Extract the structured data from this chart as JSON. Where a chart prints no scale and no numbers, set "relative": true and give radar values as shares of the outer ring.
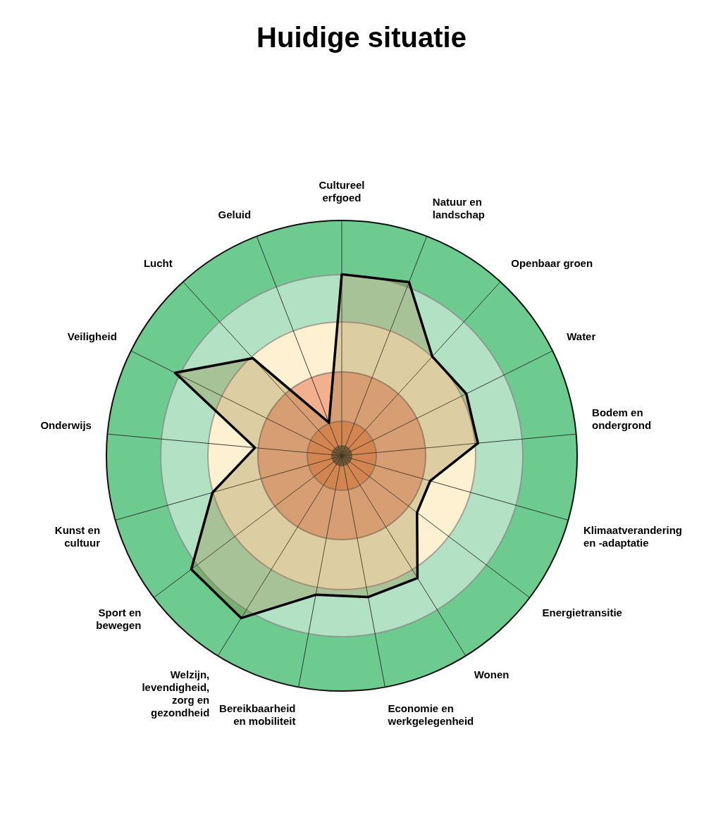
{
  "chart_data": {
    "type": "radar",
    "title": "Huidige situatie",
    "relative": true,
    "legend": false,
    "marker": "none",
    "categories": [
      "Cultureel erfgoed",
      "Natuur en landschap",
      "Openbaar groen",
      "Water",
      "Bodem en ondergrond",
      "Klimaatverandering en -adaptatie",
      "Energietransitie",
      "Wonen",
      "Economie en werkgelegenheid",
      "Bereikbaarheid en mobiliteit",
      "Welzijn, levendigheid, zorg en gezondheid",
      "Sport en bewegen",
      "Kunst en cultuur",
      "Onderwijs",
      "Veiligheid",
      "Lucht",
      "Geluid"
    ],
    "series": [
      {
        "color": "#000000",
        "values": [
          0.77,
          0.79,
          0.57,
          0.59,
          0.58,
          0.39,
          0.4,
          0.61,
          0.61,
          0.6,
          0.81,
          0.8,
          0.57,
          0.37,
          0.79,
          0.56,
          0.15
        ]
      }
    ]
  }
}
